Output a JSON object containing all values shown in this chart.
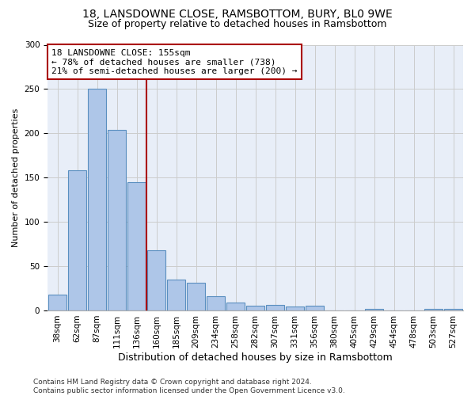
{
  "title1": "18, LANSDOWNE CLOSE, RAMSBOTTOM, BURY, BL0 9WE",
  "title2": "Size of property relative to detached houses in Ramsbottom",
  "xlabel": "Distribution of detached houses by size in Ramsbottom",
  "ylabel": "Number of detached properties",
  "categories": [
    "38sqm",
    "62sqm",
    "87sqm",
    "111sqm",
    "136sqm",
    "160sqm",
    "185sqm",
    "209sqm",
    "234sqm",
    "258sqm",
    "282sqm",
    "307sqm",
    "331sqm",
    "356sqm",
    "380sqm",
    "405sqm",
    "429sqm",
    "454sqm",
    "478sqm",
    "503sqm",
    "527sqm"
  ],
  "values": [
    18,
    158,
    250,
    204,
    145,
    68,
    35,
    31,
    16,
    9,
    5,
    6,
    4,
    5,
    0,
    0,
    2,
    0,
    0,
    2,
    2
  ],
  "bar_color": "#aec6e8",
  "bar_edge_color": "#5a8fc0",
  "vline_color": "#aa0000",
  "annotation_text": "18 LANSDOWNE CLOSE: 155sqm\n← 78% of detached houses are smaller (738)\n21% of semi-detached houses are larger (200) →",
  "annotation_box_color": "#ffffff",
  "annotation_box_edge": "#aa0000",
  "ylim": [
    0,
    300
  ],
  "yticks": [
    0,
    50,
    100,
    150,
    200,
    250,
    300
  ],
  "grid_color": "#cccccc",
  "background_color": "#e8eef8",
  "footer": "Contains HM Land Registry data © Crown copyright and database right 2024.\nContains public sector information licensed under the Open Government Licence v3.0.",
  "title1_fontsize": 10,
  "title2_fontsize": 9,
  "xlabel_fontsize": 9,
  "ylabel_fontsize": 8,
  "tick_fontsize": 7.5,
  "annotation_fontsize": 8,
  "footer_fontsize": 6.5
}
